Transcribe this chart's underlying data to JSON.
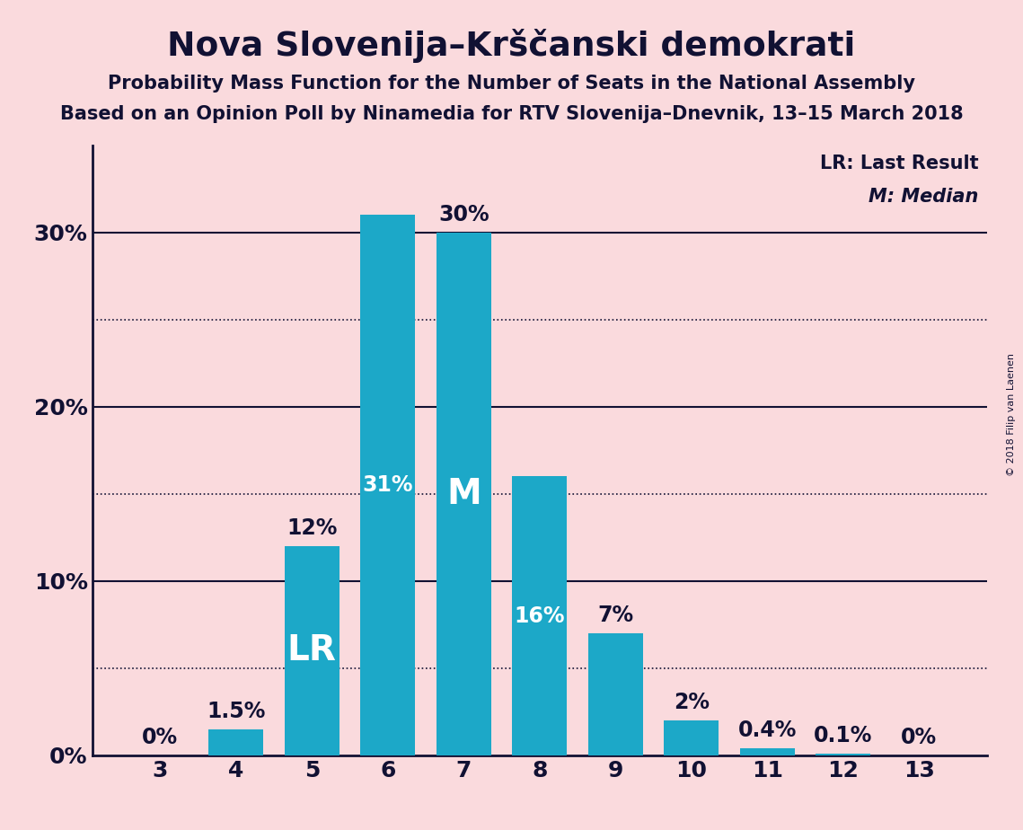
{
  "title": "Nova Slovenija–Krščanski demokrati",
  "subtitle1": "Probability Mass Function for the Number of Seats in the National Assembly",
  "subtitle2": "Based on an Opinion Poll by Ninamedia for RTV Slovenija–Dnevnik, 13–15 March 2018",
  "copyright": "© 2018 Filip van Laenen",
  "categories": [
    3,
    4,
    5,
    6,
    7,
    8,
    9,
    10,
    11,
    12,
    13
  ],
  "values": [
    0.0,
    1.5,
    12.0,
    31.0,
    30.0,
    16.0,
    7.0,
    2.0,
    0.4,
    0.1,
    0.0
  ],
  "labels": [
    "0%",
    "1.5%",
    "12%",
    "31%",
    "30%",
    "16%",
    "7%",
    "2%",
    "0.4%",
    "0.1%",
    "0%"
  ],
  "bar_color": "#1ca8c8",
  "background_color": "#fadadd",
  "bar_label_color_inside": "#ffffff",
  "bar_label_color_outside": "#111133",
  "median_bar": 7,
  "lr_bar": 5,
  "solid_gridlines": [
    10,
    20,
    30
  ],
  "dotted_gridlines": [
    5,
    15,
    25
  ],
  "ylim": [
    0,
    35
  ],
  "ytick_positions": [
    0,
    10,
    20,
    30
  ],
  "ytick_labels": [
    "0%",
    "10%",
    "20%",
    "30%"
  ],
  "legend_lr": "LR: Last Result",
  "legend_m": "M: Median"
}
